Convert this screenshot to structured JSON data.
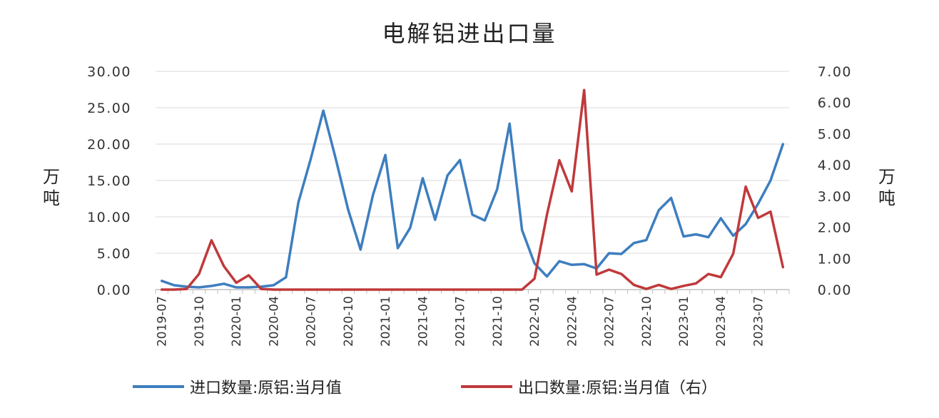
{
  "chart_data": {
    "type": "line",
    "title": "电解铝进出口量",
    "ylabel_left": "万吨",
    "ylabel_right": "万吨",
    "ylim_left": [
      0,
      30
    ],
    "ylim_right": [
      0,
      7
    ],
    "yticks_left": [
      "0.00",
      "5.00",
      "10.00",
      "15.00",
      "20.00",
      "25.00",
      "30.00"
    ],
    "yticks_right": [
      "0.00",
      "1.00",
      "2.00",
      "3.00",
      "4.00",
      "5.00",
      "6.00",
      "7.00"
    ],
    "x": [
      "2019-07",
      "2019-08",
      "2019-09",
      "2019-10",
      "2019-11",
      "2019-12",
      "2020-01",
      "2020-02",
      "2020-03",
      "2020-04",
      "2020-05",
      "2020-06",
      "2020-07",
      "2020-08",
      "2020-09",
      "2020-10",
      "2020-11",
      "2020-12",
      "2021-01",
      "2021-02",
      "2021-03",
      "2021-04",
      "2021-05",
      "2021-06",
      "2021-07",
      "2021-08",
      "2021-09",
      "2021-10",
      "2021-11",
      "2021-12",
      "2022-01",
      "2022-02",
      "2022-03",
      "2022-04",
      "2022-05",
      "2022-06",
      "2022-07",
      "2022-08",
      "2022-09",
      "2022-10",
      "2022-11",
      "2022-12",
      "2023-01",
      "2023-02",
      "2023-03",
      "2023-04",
      "2023-05",
      "2023-06",
      "2023-07",
      "2023-08",
      "2023-09"
    ],
    "xtick_labels": [
      "2019-07",
      "2019-10",
      "2020-01",
      "2020-04",
      "2020-07",
      "2020-10",
      "2021-01",
      "2021-04",
      "2021-07",
      "2021-10",
      "2022-01",
      "2022-04",
      "2022-07",
      "2022-10",
      "2023-01",
      "2023-04",
      "2023-07"
    ],
    "grid": "horizontal",
    "legend_position": "bottom",
    "series": [
      {
        "name": "进口数量:原铝:当月值",
        "axis": "left",
        "color": "#3d7ebf",
        "values": [
          1.2,
          0.6,
          0.4,
          0.3,
          0.5,
          0.8,
          0.3,
          0.3,
          0.4,
          0.6,
          1.7,
          12.0,
          18.0,
          24.6,
          18.0,
          11.0,
          5.5,
          13.0,
          18.5,
          5.7,
          8.5,
          15.3,
          9.6,
          15.7,
          17.8,
          10.3,
          9.5,
          13.8,
          22.8,
          8.2,
          3.6,
          1.8,
          3.9,
          3.4,
          3.5,
          2.9,
          5.0,
          4.9,
          6.4,
          6.8,
          10.9,
          12.6,
          7.3,
          7.6,
          7.2,
          9.8,
          7.4,
          9.0,
          11.8,
          15.0,
          20.0
        ]
      },
      {
        "name": "出口数量:原铝:当月值（右）",
        "axis": "right",
        "color": "#c0393b",
        "values": [
          0,
          0,
          0.02,
          0.5,
          1.58,
          0.75,
          0.22,
          0.46,
          0.02,
          0,
          0,
          0,
          0,
          0,
          0,
          0,
          0,
          0,
          0,
          0,
          0,
          0,
          0,
          0,
          0,
          0,
          0,
          0,
          0,
          0,
          0.35,
          2.4,
          4.15,
          3.15,
          6.4,
          0.48,
          0.64,
          0.5,
          0.15,
          0.02,
          0.15,
          0.02,
          0.12,
          0.2,
          0.5,
          0.4,
          1.15,
          3.3,
          2.3,
          2.5,
          0.72
        ]
      }
    ]
  }
}
